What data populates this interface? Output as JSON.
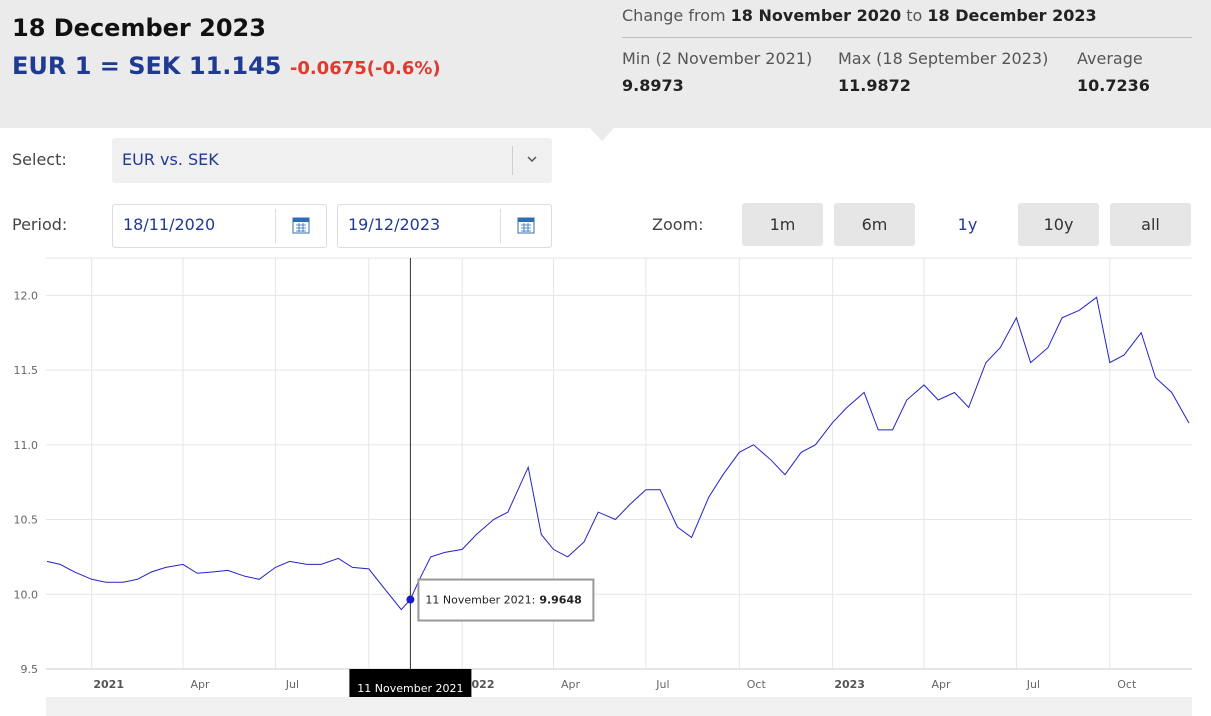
{
  "header": {
    "date": "18 December 2023",
    "rate": "EUR 1 = SEK 11.145",
    "change": "-0.0675(-0.6%)"
  },
  "stats": {
    "change_from": "Change from",
    "from_date": "18 November 2020",
    "to": "to",
    "to_date": "18 December 2023",
    "min_label": "Min (2 November 2021)",
    "min_value": 9.8973,
    "max_label": "Max (18 September 2023)",
    "max_value": 11.9872,
    "average_label": "Average",
    "average_value": 10.7236
  },
  "controls": {
    "select_label": "Select:",
    "select_value": "EUR vs. SEK",
    "period_label": "Period:",
    "period_from": "18/11/2020",
    "period_to": "19/12/2023",
    "zoom_label": "Zoom:",
    "zoom_buttons": [
      "1m",
      "6m",
      "1y",
      "10y",
      "all"
    ]
  },
  "chart_data": {
    "type": "line",
    "color": "#2323c8",
    "x": [
      "2020-11-18",
      "2020-12-01",
      "2020-12-15",
      "2021-01-01",
      "2021-01-15",
      "2021-02-01",
      "2021-02-15",
      "2021-03-01",
      "2021-03-15",
      "2021-04-01",
      "2021-04-15",
      "2021-05-01",
      "2021-05-15",
      "2021-06-01",
      "2021-06-15",
      "2021-07-01",
      "2021-07-15",
      "2021-08-01",
      "2021-08-15",
      "2021-09-01",
      "2021-09-15",
      "2021-10-01",
      "2021-10-15",
      "2021-11-02",
      "2021-11-11",
      "2021-11-20",
      "2021-12-01",
      "2021-12-15",
      "2022-01-01",
      "2022-01-15",
      "2022-02-01",
      "2022-02-15",
      "2022-03-07",
      "2022-03-20",
      "2022-04-01",
      "2022-04-15",
      "2022-05-01",
      "2022-05-15",
      "2022-06-01",
      "2022-06-15",
      "2022-07-01",
      "2022-07-15",
      "2022-08-01",
      "2022-08-15",
      "2022-09-01",
      "2022-09-15",
      "2022-10-01",
      "2022-10-15",
      "2022-11-01",
      "2022-11-15",
      "2022-12-01",
      "2022-12-15",
      "2023-01-01",
      "2023-01-15",
      "2023-02-01",
      "2023-02-15",
      "2023-03-01",
      "2023-03-15",
      "2023-04-01",
      "2023-04-15",
      "2023-05-01",
      "2023-05-15",
      "2023-06-01",
      "2023-06-15",
      "2023-07-01",
      "2023-07-15",
      "2023-08-01",
      "2023-08-15",
      "2023-09-01",
      "2023-09-18",
      "2023-10-01",
      "2023-10-15",
      "2023-11-01",
      "2023-11-15",
      "2023-12-01",
      "2023-12-18"
    ],
    "values": [
      10.22,
      10.2,
      10.15,
      10.1,
      10.08,
      10.08,
      10.1,
      10.15,
      10.18,
      10.2,
      10.14,
      10.15,
      10.16,
      10.12,
      10.1,
      10.18,
      10.22,
      10.2,
      10.2,
      10.24,
      10.18,
      10.17,
      10.05,
      9.8973,
      9.9648,
      10.1,
      10.25,
      10.28,
      10.3,
      10.4,
      10.5,
      10.55,
      10.85,
      10.4,
      10.3,
      10.25,
      10.35,
      10.55,
      10.5,
      10.6,
      10.7,
      10.7,
      10.45,
      10.38,
      10.65,
      10.8,
      10.95,
      11.0,
      10.9,
      10.8,
      10.95,
      11.0,
      11.15,
      11.25,
      11.35,
      11.1,
      11.1,
      11.3,
      11.4,
      11.3,
      11.35,
      11.25,
      11.55,
      11.65,
      11.85,
      11.55,
      11.65,
      11.85,
      11.9,
      11.9872,
      11.55,
      11.6,
      11.75,
      11.45,
      11.35,
      11.145
    ],
    "xlim": [
      "2020-11-17",
      "2023-12-21"
    ],
    "xticks": [
      {
        "value": "2021-01-01",
        "label": "2021"
      },
      {
        "value": "2021-04-01",
        "label": "Apr"
      },
      {
        "value": "2021-07-01",
        "label": "Jul"
      },
      {
        "value": "2021-10-01",
        "label": "Oct"
      },
      {
        "value": "2022-01-01",
        "label": "2022"
      },
      {
        "value": "2022-04-01",
        "label": "Apr"
      },
      {
        "value": "2022-07-01",
        "label": "Jul"
      },
      {
        "value": "2022-10-01",
        "label": "Oct"
      },
      {
        "value": "2023-01-01",
        "label": "2023"
      },
      {
        "value": "2023-04-01",
        "label": "Apr"
      },
      {
        "value": "2023-07-01",
        "label": "Jul"
      },
      {
        "value": "2023-10-01",
        "label": "Oct"
      }
    ],
    "ylim": [
      9.5,
      12.25
    ],
    "yticks": [
      9.5,
      {
        "value": 10,
        "label": "10.0"
      },
      10.5,
      {
        "value": 11,
        "label": "11.0"
      },
      11.5,
      {
        "value": 12,
        "label": "12.0"
      }
    ],
    "grid": true,
    "tooltip": {
      "x": "2021-11-11",
      "date": "11 November 2021",
      "label": "11 November 2021:",
      "value": 9.9648
    }
  }
}
